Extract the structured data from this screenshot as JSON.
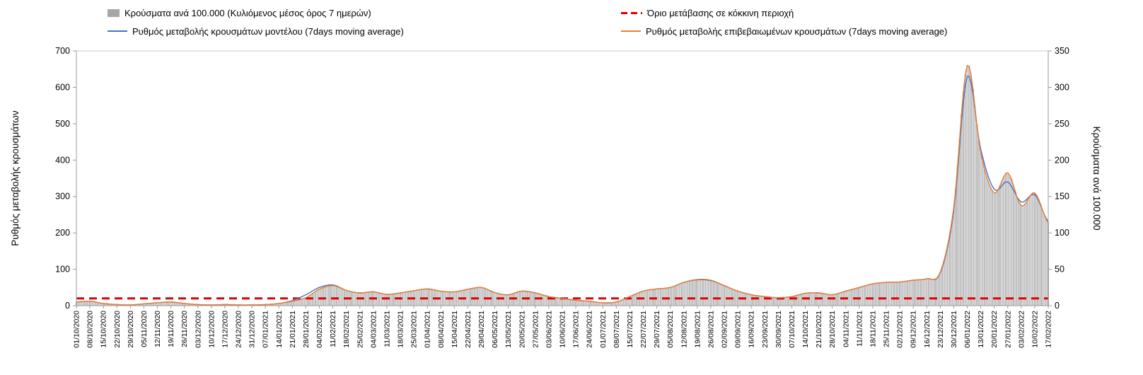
{
  "legend": {
    "bars": "Κρούσματα ανά 100.000 (Κυλιόμενος μέσος όρος 7 ημερών)",
    "threshold": "Όριο μετάβασης σε κόκκινη περιοχή",
    "model": "Ρυθμός μεταβολής κρουσμάτων μοντέλου (7days moving average)",
    "confirmed": "Ρυθμός μεταβολής επιβεβαιωμένων κρουσμάτων (7days moving average)"
  },
  "axes": {
    "left_label": "Ρυθμός μεταβολής κρουσμάτων",
    "right_label": "Κρούσματα ανά 100.000",
    "left_ticks": [
      0,
      100,
      200,
      300,
      400,
      500,
      600,
      700
    ],
    "right_ticks": [
      0,
      50,
      100,
      150,
      200,
      250,
      300,
      350
    ]
  },
  "colors": {
    "bar_fill": "#d2d2d2",
    "bar_stroke": "#9f9f9f",
    "model_line": "#4472c4",
    "confirmed_line": "#ed7d31",
    "threshold_line": "#e00000",
    "axis_line": "#9b9b9b",
    "border_line": "#c9c9c9",
    "text": "#000000"
  },
  "chart_data": {
    "type": "line",
    "legend_position": "top",
    "grid": false,
    "left_ylim": [
      0,
      700
    ],
    "right_ylim": [
      0,
      350
    ],
    "x_tick_interval_days": 7,
    "categories": [
      "01/10/2020",
      "08/10/2020",
      "15/10/2020",
      "22/10/2020",
      "29/10/2020",
      "05/11/2020",
      "12/11/2020",
      "19/11/2020",
      "26/11/2020",
      "03/12/2020",
      "10/12/2020",
      "17/12/2020",
      "24/12/2020",
      "31/12/2020",
      "07/01/2021",
      "14/01/2021",
      "21/01/2021",
      "28/01/2021",
      "04/02/2021",
      "11/02/2021",
      "18/02/2021",
      "25/02/2021",
      "04/03/2021",
      "11/03/2021",
      "18/03/2021",
      "25/03/2021",
      "01/04/2021",
      "08/04/2021",
      "15/04/2021",
      "22/04/2021",
      "29/04/2021",
      "06/05/2021",
      "13/05/2021",
      "20/05/2021",
      "27/05/2021",
      "03/06/2021",
      "10/06/2021",
      "17/06/2021",
      "24/06/2021",
      "01/07/2021",
      "08/07/2021",
      "15/07/2021",
      "22/07/2021",
      "29/07/2021",
      "05/08/2021",
      "12/08/2021",
      "19/08/2021",
      "26/08/2021",
      "02/09/2021",
      "09/09/2021",
      "16/09/2021",
      "23/09/2021",
      "30/09/2021",
      "07/10/2021",
      "14/10/2021",
      "21/10/2021",
      "28/10/2021",
      "04/11/2021",
      "11/11/2021",
      "18/11/2021",
      "25/11/2021",
      "02/12/2021",
      "09/12/2021",
      "16/12/2021",
      "23/12/2021",
      "30/12/2021",
      "06/01/2022",
      "13/01/2022",
      "20/01/2022",
      "27/01/2022",
      "03/02/2022",
      "10/02/2022",
      "17/02/2022"
    ],
    "series": [
      {
        "key": "bars",
        "name": "Κρούσματα ανά 100.000 (Κυλιόμενος μέσος όρος 7 ημερών)",
        "kind": "bar",
        "axis": "right",
        "color": "#d2d2d2",
        "values": [
          5,
          6,
          3,
          2,
          1,
          3,
          4,
          5,
          3,
          2,
          1,
          2,
          1,
          1,
          2,
          3,
          6,
          11,
          23,
          28,
          21,
          18,
          19,
          16,
          18,
          20,
          23,
          20,
          19,
          23,
          25,
          18,
          15,
          20,
          18,
          13,
          10,
          8,
          6,
          4,
          5,
          13,
          20,
          23,
          25,
          32,
          36,
          35,
          28,
          20,
          15,
          13,
          11,
          13,
          17,
          18,
          15,
          20,
          25,
          30,
          32,
          33,
          35,
          37,
          46,
          135,
          330,
          210,
          155,
          183,
          138,
          155,
          114
        ]
      },
      {
        "key": "model",
        "name": "Ρυθμός μεταβολής κρουσμάτων μοντέλου (7days moving average)",
        "kind": "line",
        "axis": "left",
        "color": "#4472c4",
        "values": [
          10,
          12,
          6,
          3,
          2,
          5,
          8,
          10,
          6,
          3,
          2,
          3,
          2,
          2,
          3,
          6,
          14,
          30,
          50,
          57,
          42,
          35,
          38,
          31,
          35,
          41,
          46,
          40,
          38,
          45,
          50,
          36,
          30,
          40,
          35,
          25,
          20,
          15,
          12,
          8,
          10,
          25,
          40,
          46,
          50,
          64,
          71,
          69,
          55,
          40,
          30,
          25,
          22,
          25,
          34,
          35,
          30,
          40,
          50,
          60,
          64,
          65,
          70,
          74,
          90,
          260,
          630,
          430,
          320,
          340,
          285,
          305,
          232
        ]
      },
      {
        "key": "confirmed",
        "name": "Ρυθμός μεταβολής επιβεβαιωμένων κρουσμάτων (7days moving average)",
        "kind": "line",
        "axis": "left",
        "color": "#ed7d31",
        "values": [
          10,
          12,
          6,
          3,
          2,
          5,
          8,
          10,
          6,
          3,
          2,
          3,
          2,
          2,
          3,
          6,
          12,
          22,
          45,
          55,
          42,
          35,
          38,
          31,
          35,
          41,
          46,
          40,
          38,
          45,
          50,
          36,
          30,
          40,
          35,
          25,
          20,
          15,
          12,
          8,
          10,
          25,
          40,
          46,
          50,
          64,
          72,
          70,
          55,
          40,
          30,
          25,
          22,
          25,
          34,
          35,
          30,
          40,
          50,
          60,
          64,
          65,
          70,
          74,
          92,
          270,
          660,
          420,
          310,
          365,
          275,
          310,
          228
        ]
      },
      {
        "key": "threshold",
        "name": "Όριο μετάβασης σε κόκκινη περιοχή",
        "kind": "dashed-horizontal-line",
        "axis": "left",
        "value": 20,
        "value_right_axis_equivalent": 10,
        "color": "#e00000"
      }
    ]
  }
}
